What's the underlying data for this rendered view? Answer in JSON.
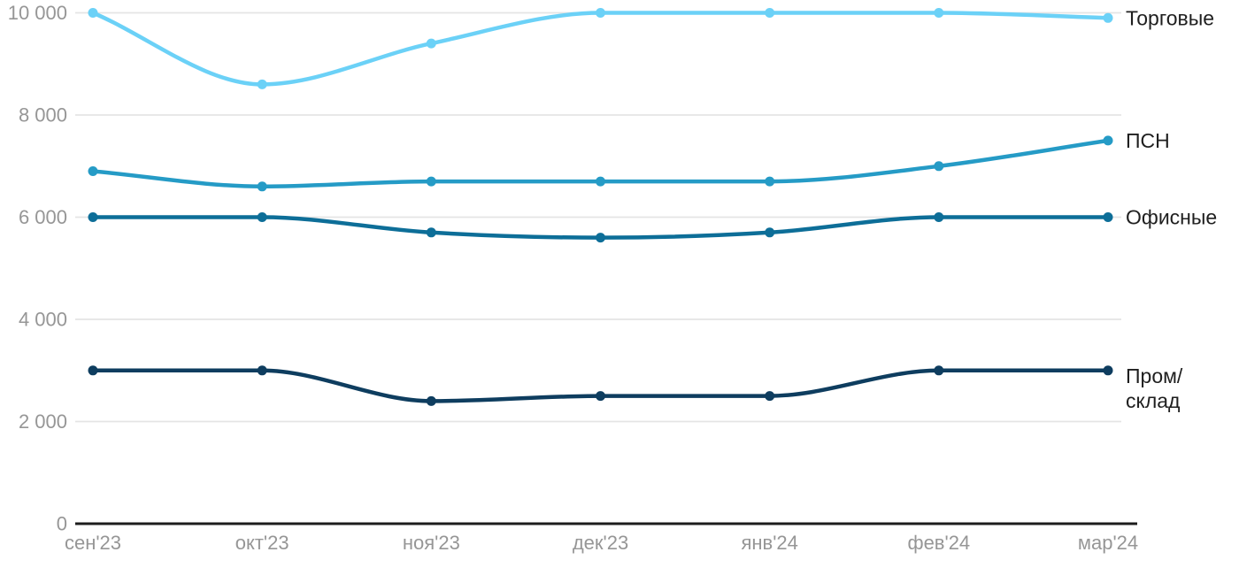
{
  "chart_data": {
    "type": "line",
    "title": "",
    "xlabel": "",
    "ylabel": "",
    "x_categories": [
      "сен'23",
      "окт'23",
      "ноя'23",
      "дек'23",
      "янв'24",
      "фев'24",
      "мар'24"
    ],
    "series": [
      {
        "name": "Торговые",
        "color": "#6bd1f7",
        "values": [
          10000,
          8600,
          9400,
          10000,
          10000,
          10000,
          9900
        ]
      },
      {
        "name": "ПСН",
        "color": "#259bc6",
        "values": [
          6900,
          6600,
          6700,
          6700,
          6700,
          7000,
          7500
        ]
      },
      {
        "name": "Офисные",
        "color": "#0d6e98",
        "values": [
          6000,
          6000,
          5700,
          5600,
          5700,
          6000,
          6000
        ]
      },
      {
        "name": "Пром/склад",
        "color": "#0e3d5f",
        "values": [
          3000,
          3000,
          2400,
          2500,
          2500,
          3000,
          3000
        ]
      }
    ],
    "y_ticks": [
      0,
      2000,
      4000,
      6000,
      8000,
      10000
    ],
    "y_tick_labels": [
      "0",
      "2 000",
      "4 000",
      "6 000",
      "8 000",
      "10 000"
    ],
    "ylim": [
      0,
      10000
    ],
    "grid": "horizontal-only",
    "legend_position": "right-end-of-line-labels"
  },
  "colors": {
    "background": "#ffffff",
    "grid": "#e4e4e4",
    "axis": "#1c1c1c",
    "tick_label": "#969696",
    "series_label": "#1f1f1f"
  }
}
